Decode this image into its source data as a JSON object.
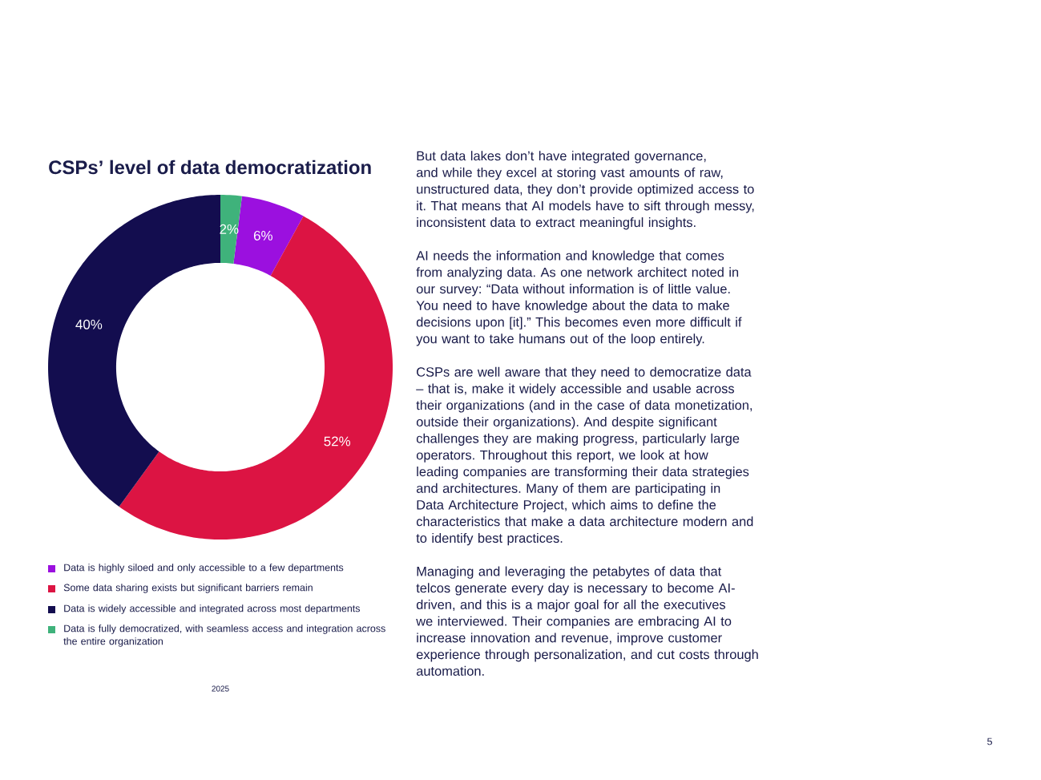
{
  "chart_data": {
    "type": "donut",
    "title": "CSPs’ level of data democratization",
    "categories": [
      "Data is highly siloed and only accessible to a few departments",
      "Some data sharing exists but significant barriers remain",
      "Data is widely accessible and integrated across most departments",
      "Data is fully democratized, with seamless access and integration across the entire organization"
    ],
    "values": [
      6,
      52,
      40,
      2
    ],
    "value_labels": [
      "6%",
      "52%",
      "40%",
      "2%"
    ],
    "colors": [
      "#9b10df",
      "#dc1443",
      "#130d4f",
      "#3fb27b"
    ],
    "legend": "bottom",
    "annotations": [
      "But data lakes don’t have integrated governance, and while they excel at storing vast amounts of raw, unstructured data, they don’t provide optimized access to it. That means that AI models have to sift through messy, inconsistent data to extract meaningful insights.",
      "AI needs the information and knowledge that comes from analyzing data. As one network architect noted in our survey: “Data without information is of little value. You need to have knowledge about the data to make decisions upon [it].” This becomes even more difficult if you want to take humans out of the loop entirely.",
      "CSPs are well aware that they need to democratize data – that is, make it widely accessible and usable across their organizations (and in the case of data monetization, outside their organizations). And despite significant challenges they are making progress, particularly large operators. Throughout this report, we look at how leading companies are transforming their data strategies and architectures. Many of them are participating in Data Architecture Project, which aims to define the characteristics that make a data architecture modern and to identify best practices.",
      "Managing and leveraging the petabytes of data that telcos generate every day is necessary to become AI-driven, and this is a major goal for all the executives we interviewed. Their companies are embracing AI to increase innovation and revenue, improve customer experience through personalization, and cut costs through automation.",
      "2025",
      "5"
    ]
  }
}
